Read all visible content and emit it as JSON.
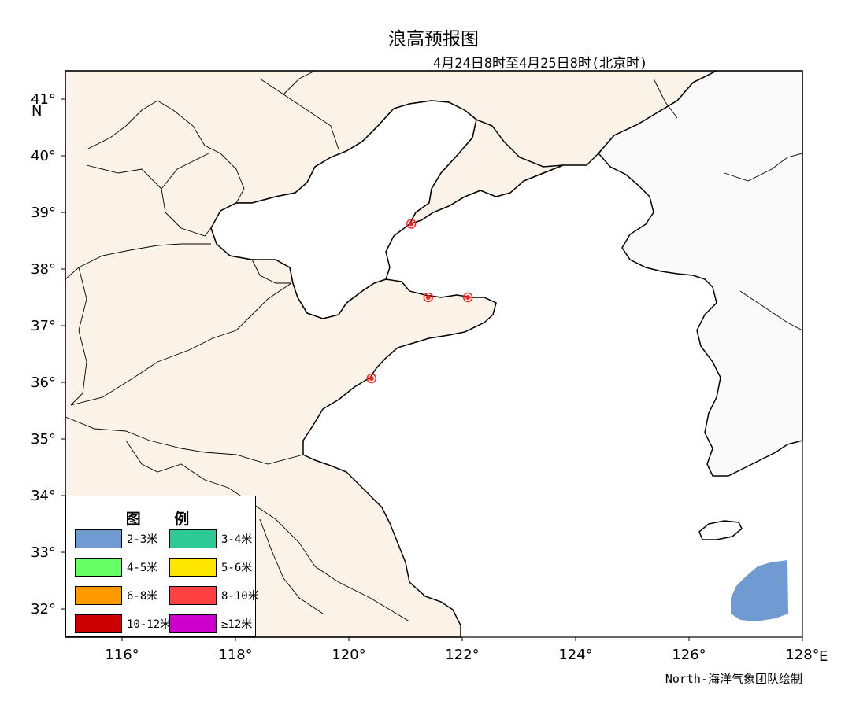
{
  "title": "浪高预报图",
  "subtitle": "4月24日8时至4月25日8时(北京时)",
  "credit": "North-海洋气象团队绘制",
  "colors": {
    "land": "#fbf3e8",
    "korea_land": "#fafafa",
    "sea": "#ffffff",
    "marker": "#ff2020"
  },
  "axes": {
    "lon_ticks": [
      "116°",
      "118°",
      "120°",
      "122°",
      "124°",
      "126°",
      "128°"
    ],
    "lat_ticks": [
      "32°",
      "33°",
      "34°",
      "35°",
      "36°",
      "37°",
      "38°",
      "39°",
      "40°",
      "41°"
    ],
    "lon_unit": "E",
    "lat_unit": "N",
    "lon_range": [
      115,
      128
    ],
    "lat_range": [
      31.5,
      41.5
    ]
  },
  "legend": {
    "title": "图 例",
    "items": [
      {
        "label": "2-3米",
        "color": "#6f9bd2"
      },
      {
        "label": "3-4米",
        "color": "#2ec995"
      },
      {
        "label": "4-5米",
        "color": "#66ff66"
      },
      {
        "label": "5-6米",
        "color": "#ffe600"
      },
      {
        "label": "6-8米",
        "color": "#ff9900"
      },
      {
        "label": "8-10米",
        "color": "#ff4040"
      },
      {
        "label": "10-12米",
        "color": "#cc0000"
      },
      {
        "label": "≥12米",
        "color": "#cc00cc"
      }
    ]
  },
  "wave_zones": [
    {
      "class": "2-3米",
      "color": "#6f9bd2",
      "region": "southeast corner, east of Jeju"
    }
  ],
  "stations": [
    {
      "lon": 121.1,
      "lat": 38.8
    },
    {
      "lon": 121.4,
      "lat": 37.5
    },
    {
      "lon": 122.1,
      "lat": 37.5
    },
    {
      "lon": 120.4,
      "lat": 36.07
    }
  ]
}
